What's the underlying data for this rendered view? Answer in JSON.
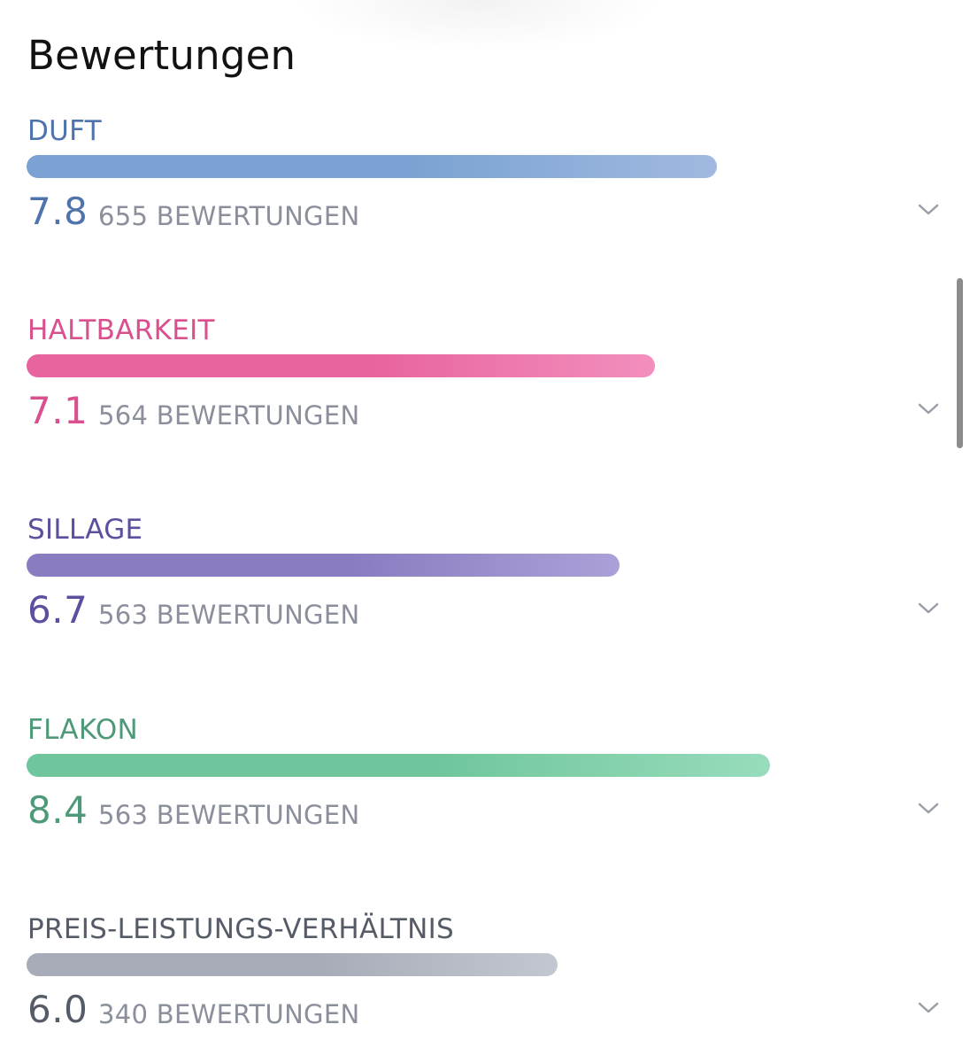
{
  "header": {
    "title": "Bewertungen"
  },
  "ratings": [
    {
      "label": "DUFT",
      "score": "7.8",
      "count_text": "655 BEWERTUNGEN",
      "fill_fraction": 0.78,
      "color": "#4f74ad",
      "bar_start": "#7aa2d2",
      "bar_end": "#a0b9e0",
      "chevron_icon": "chevron-down-icon"
    },
    {
      "label": "HALTBARKEIT",
      "score": "7.1",
      "count_text": "564 BEWERTUNGEN",
      "fill_fraction": 0.71,
      "color": "#da4f8e",
      "bar_start": "#e8649e",
      "bar_end": "#f28fbd",
      "chevron_icon": "chevron-down-icon"
    },
    {
      "label": "SILLAGE",
      "score": "6.7",
      "count_text": "563 BEWERTUNGEN",
      "fill_fraction": 0.67,
      "color": "#5c4f9e",
      "bar_start": "#8a7cc0",
      "bar_end": "#aca0d8",
      "chevron_icon": "chevron-down-icon"
    },
    {
      "label": "FLAKON",
      "score": "8.4",
      "count_text": "563 BEWERTUNGEN",
      "fill_fraction": 0.84,
      "color": "#4e9a78",
      "bar_start": "#6fc69c",
      "bar_end": "#98dcbb",
      "chevron_icon": "chevron-down-icon"
    },
    {
      "label": "PREIS-LEISTUNGS-VERHÄLTNIS",
      "score": "6.0",
      "count_text": "340 BEWERTUNGEN",
      "fill_fraction": 0.6,
      "color": "#555c68",
      "bar_start": "#a7acb8",
      "bar_end": "#c3c7d0",
      "chevron_icon": "chevron-down-icon"
    }
  ]
}
